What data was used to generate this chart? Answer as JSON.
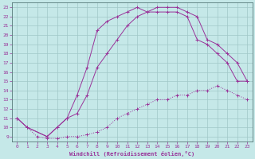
{
  "xlabel": "Windchill (Refroidissement éolien,°C)",
  "xlim": [
    -0.5,
    23.5
  ],
  "ylim": [
    8.5,
    23.5
  ],
  "background_color": "#c5e8e8",
  "grid_color": "#a0c8c8",
  "line_color": "#993399",
  "line1_x": [
    0,
    1,
    2,
    3,
    4,
    5,
    6,
    7,
    8,
    9,
    10,
    11,
    12,
    13,
    14,
    15,
    16,
    17,
    18,
    19,
    20,
    21,
    22,
    23
  ],
  "line1_y": [
    11,
    10,
    9,
    8.8,
    8.8,
    9,
    9,
    9.2,
    9.5,
    10,
    11,
    11.5,
    12,
    12.5,
    13,
    13,
    13.5,
    13.5,
    14,
    14,
    14.5,
    14,
    13.5,
    13
  ],
  "line2_x": [
    0,
    1,
    3,
    4,
    5,
    6,
    7,
    8,
    9,
    10,
    11,
    12,
    13,
    14,
    15,
    16,
    17,
    18,
    19,
    20,
    21,
    22,
    23
  ],
  "line2_y": [
    11,
    10,
    9,
    10,
    11,
    13.5,
    16.5,
    20.5,
    21.5,
    22,
    22.5,
    23,
    22.5,
    22.5,
    22.5,
    22.5,
    22,
    19.5,
    19,
    18,
    17,
    15,
    15
  ],
  "line3_x": [
    0,
    1,
    3,
    4,
    5,
    6,
    7,
    8,
    9,
    10,
    11,
    12,
    13,
    14,
    15,
    16,
    17,
    18,
    19,
    20,
    21,
    22,
    23
  ],
  "line3_y": [
    11,
    10,
    9,
    10,
    11,
    11.5,
    13.5,
    16.5,
    18,
    19.5,
    21,
    22,
    22.5,
    23,
    23,
    23,
    22.5,
    22,
    19.5,
    19,
    18,
    17,
    15
  ],
  "xticks": [
    0,
    1,
    2,
    3,
    4,
    5,
    6,
    7,
    8,
    9,
    10,
    11,
    12,
    13,
    14,
    15,
    16,
    17,
    18,
    19,
    20,
    21,
    22,
    23
  ],
  "yticks": [
    9,
    10,
    11,
    12,
    13,
    14,
    15,
    16,
    17,
    18,
    19,
    20,
    21,
    22,
    23
  ]
}
